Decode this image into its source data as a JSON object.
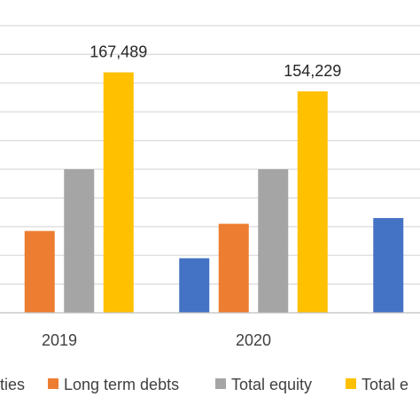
{
  "chart_data": {
    "type": "bar",
    "categories": [
      "2019",
      "2020",
      ""
    ],
    "series": [
      {
        "name": "ties",
        "color": "#4472C4",
        "values": [
          null,
          38000,
          66000
        ]
      },
      {
        "name": "Long term debts",
        "color": "#ED7D31",
        "values": [
          57000,
          62000,
          null
        ]
      },
      {
        "name": "Total equity",
        "color": "#A5A5A5",
        "values": [
          100000,
          100000,
          null
        ]
      },
      {
        "name": "Total e",
        "color": "#FFC000",
        "values": [
          167489,
          154229,
          null
        ]
      }
    ],
    "data_labels": [
      {
        "category": "2019",
        "series": "Total e",
        "text": "167,489"
      },
      {
        "category": "2020",
        "series": "Total e",
        "text": "154,229"
      }
    ],
    "ylim": [
      0,
      220000
    ],
    "gridline_step": 20000,
    "grid": true,
    "legend_position": "bottom",
    "title": "",
    "xlabel": "",
    "ylabel": ""
  }
}
